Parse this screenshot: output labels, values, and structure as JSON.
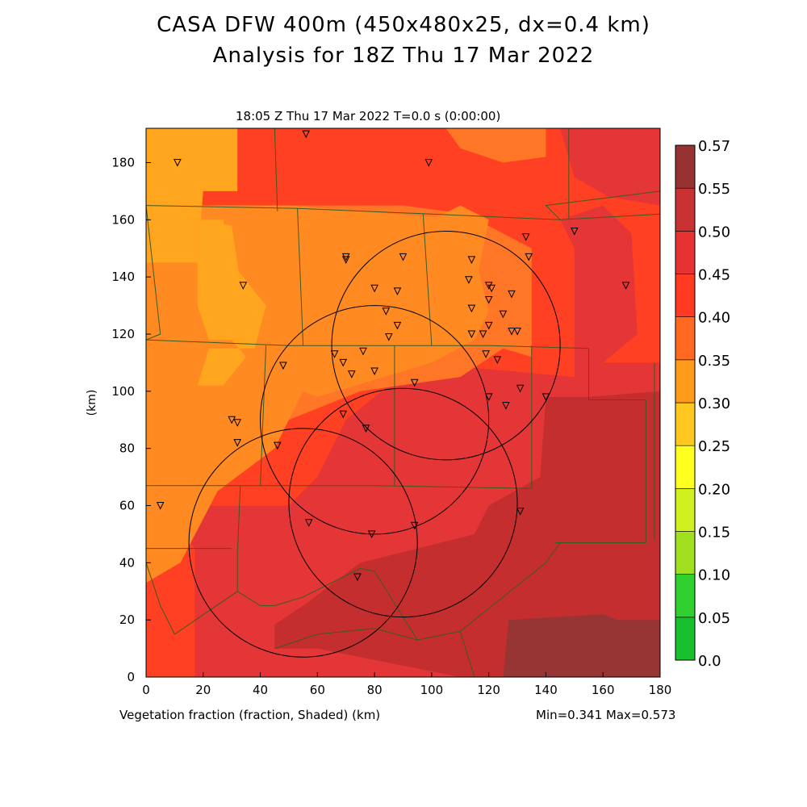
{
  "header": {
    "title": "CASA DFW 400m (450x480x25, dx=0.4 km)",
    "subtitle": "Analysis for 18Z Thu 17 Mar 2022"
  },
  "panel_label": "18:05 Z Thu 17 Mar 2022   T=0.0 s (0:00:00)",
  "footer": {
    "field_label": "Vegetation fraction (fraction, Shaded)  (km)",
    "minmax": "Min=0.341 Max=0.573"
  },
  "chart_data": {
    "type": "heatmap",
    "xlabel": "",
    "ylabel": "(km)",
    "xlim": [
      0,
      180
    ],
    "ylim": [
      0,
      192
    ],
    "x_ticks": [
      0,
      20,
      40,
      60,
      80,
      100,
      120,
      140,
      160,
      180
    ],
    "y_ticks": [
      0,
      20,
      40,
      60,
      80,
      100,
      120,
      140,
      160,
      180
    ],
    "colorbar": {
      "levels": [
        "0.0",
        "0.05",
        "0.10",
        "0.15",
        "0.20",
        "0.25",
        "0.30",
        "0.35",
        "0.40",
        "0.45",
        "0.50",
        "0.55",
        "0.57"
      ],
      "colors": [
        "#20e890",
        "#18c030",
        "#30d030",
        "#a0e020",
        "#d0f020",
        "#ffff20",
        "#ffc820",
        "#ff9a1a",
        "#ff6a20",
        "#ff3a20",
        "#e63232",
        "#c83232",
        "#963232"
      ]
    },
    "field_colors": {
      "v30": "#ffa51e",
      "v35": "#ff8a22",
      "v40": "#ff7626",
      "v45": "#ff4022",
      "v50": "#e43636",
      "v55": "#c42e2e",
      "v57": "#973535"
    },
    "radar_rings": [
      {
        "cx": 55,
        "cy": 47,
        "r": 40
      },
      {
        "cx": 80,
        "cy": 90,
        "r": 40
      },
      {
        "cx": 90,
        "cy": 61,
        "r": 40
      },
      {
        "cx": 105,
        "cy": 116,
        "r": 40
      }
    ],
    "stations": [
      [
        11,
        180
      ],
      [
        56,
        190
      ],
      [
        99,
        180
      ],
      [
        34,
        137
      ],
      [
        70,
        146
      ],
      [
        70,
        147
      ],
      [
        90,
        147
      ],
      [
        80,
        136
      ],
      [
        88,
        135
      ],
      [
        84,
        128
      ],
      [
        88,
        123
      ],
      [
        85,
        119
      ],
      [
        66,
        113
      ],
      [
        69,
        110
      ],
      [
        72,
        106
      ],
      [
        76,
        114
      ],
      [
        80,
        107
      ],
      [
        94,
        103
      ],
      [
        48,
        109
      ],
      [
        69,
        92
      ],
      [
        77,
        87
      ],
      [
        46,
        81
      ],
      [
        30,
        90
      ],
      [
        32,
        89
      ],
      [
        32,
        82
      ],
      [
        5,
        60
      ],
      [
        57,
        54
      ],
      [
        79,
        50
      ],
      [
        94,
        53
      ],
      [
        74,
        35
      ],
      [
        114,
        146
      ],
      [
        113,
        139
      ],
      [
        114,
        129
      ],
      [
        114,
        120
      ],
      [
        118,
        120
      ],
      [
        120,
        137
      ],
      [
        121,
        136
      ],
      [
        120,
        132
      ],
      [
        120,
        123
      ],
      [
        125,
        127
      ],
      [
        119,
        113
      ],
      [
        128,
        134
      ],
      [
        128,
        121
      ],
      [
        130,
        121
      ],
      [
        123,
        111
      ],
      [
        120,
        98
      ],
      [
        126,
        95
      ],
      [
        131,
        101
      ],
      [
        140,
        98
      ],
      [
        133,
        154
      ],
      [
        134,
        147
      ],
      [
        150,
        156
      ],
      [
        168,
        137
      ],
      [
        131,
        58
      ]
    ]
  }
}
